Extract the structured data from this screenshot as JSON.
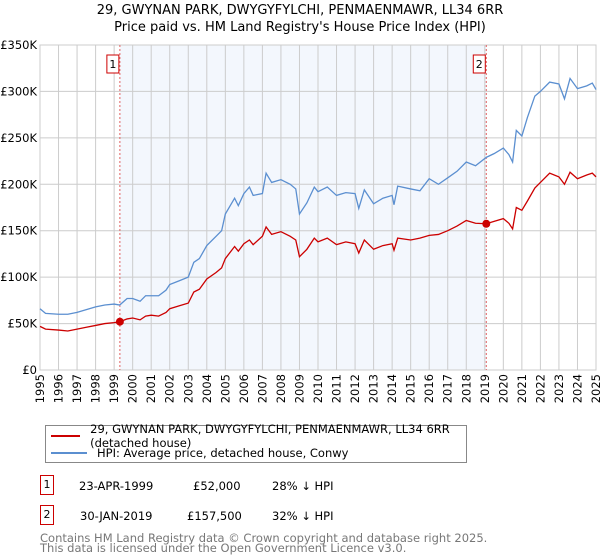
{
  "chart_data": {
    "type": "line",
    "title": "29, GWYNAN PARK, DWYGYFYLCHI, PENMAENMAWR, LL34 6RR",
    "subtitle": "Price paid vs. HM Land Registry's House Price Index (HPI)",
    "xlim": [
      1995,
      2025
    ],
    "ylim": [
      0,
      350000
    ],
    "grid": true,
    "x_ticks": [
      "1995",
      "1996",
      "1997",
      "1998",
      "1999",
      "2000",
      "2001",
      "2002",
      "2003",
      "2004",
      "2005",
      "2006",
      "2007",
      "2008",
      "2009",
      "2010",
      "2011",
      "2012",
      "2013",
      "2014",
      "2015",
      "2016",
      "2017",
      "2018",
      "2019",
      "2020",
      "2021",
      "2022",
      "2023",
      "2024",
      "2025"
    ],
    "y_ticks": [
      {
        "v": 0,
        "label": "£0"
      },
      {
        "v": 50000,
        "label": "£50K"
      },
      {
        "v": 100000,
        "label": "£100K"
      },
      {
        "v": 150000,
        "label": "£150K"
      },
      {
        "v": 200000,
        "label": "£200K"
      },
      {
        "v": 250000,
        "label": "£250K"
      },
      {
        "v": 300000,
        "label": "£300K"
      },
      {
        "v": 350000,
        "label": "£350K"
      }
    ],
    "shaded_range": [
      1999.31,
      2019.08
    ],
    "series": [
      {
        "name": "29, GWYNAN PARK, DWYGYFYLCHI, PENMAENMAWR, LL34 6RR (detached house)",
        "color": "#cc0000",
        "points": [
          [
            1995,
            47
          ],
          [
            1995.3,
            44
          ],
          [
            1996,
            43
          ],
          [
            1996.5,
            42
          ],
          [
            1997,
            44
          ],
          [
            1997.5,
            46
          ],
          [
            1998,
            48
          ],
          [
            1998.5,
            50
          ],
          [
            1999,
            51
          ],
          [
            1999.31,
            52
          ],
          [
            1999.7,
            55
          ],
          [
            2000,
            56
          ],
          [
            2000.4,
            54
          ],
          [
            2000.7,
            58
          ],
          [
            2001,
            59
          ],
          [
            2001.4,
            58
          ],
          [
            2001.8,
            62
          ],
          [
            2002,
            66
          ],
          [
            2002.5,
            69
          ],
          [
            2003,
            72
          ],
          [
            2003.3,
            84
          ],
          [
            2003.6,
            87
          ],
          [
            2004,
            98
          ],
          [
            2004.5,
            105
          ],
          [
            2004.8,
            110
          ],
          [
            2005,
            120
          ],
          [
            2005.5,
            133
          ],
          [
            2005.7,
            128
          ],
          [
            2006,
            136
          ],
          [
            2006.3,
            140
          ],
          [
            2006.5,
            135
          ],
          [
            2007,
            144
          ],
          [
            2007.2,
            154
          ],
          [
            2007.5,
            146
          ],
          [
            2008,
            149
          ],
          [
            2008.5,
            144
          ],
          [
            2008.8,
            140
          ],
          [
            2009,
            122
          ],
          [
            2009.4,
            130
          ],
          [
            2009.8,
            142
          ],
          [
            2010,
            138
          ],
          [
            2010.5,
            142
          ],
          [
            2011,
            135
          ],
          [
            2011.5,
            138
          ],
          [
            2012,
            136
          ],
          [
            2012.2,
            126
          ],
          [
            2012.5,
            140
          ],
          [
            2013,
            130
          ],
          [
            2013.5,
            134
          ],
          [
            2014,
            136
          ],
          [
            2014.1,
            129
          ],
          [
            2014.3,
            142
          ],
          [
            2015,
            140
          ],
          [
            2015.5,
            142
          ],
          [
            2016,
            145
          ],
          [
            2016.5,
            146
          ],
          [
            2017,
            150
          ],
          [
            2017.5,
            155
          ],
          [
            2018,
            161
          ],
          [
            2018.5,
            158
          ],
          [
            2019.08,
            157.5
          ],
          [
            2019.5,
            160
          ],
          [
            2020,
            163
          ],
          [
            2020.3,
            158
          ],
          [
            2020.5,
            152
          ],
          [
            2020.7,
            175
          ],
          [
            2021,
            172
          ],
          [
            2021.3,
            182
          ],
          [
            2021.7,
            196
          ],
          [
            2022,
            202
          ],
          [
            2022.5,
            212
          ],
          [
            2023,
            208
          ],
          [
            2023.3,
            200
          ],
          [
            2023.6,
            213
          ],
          [
            2024,
            206
          ],
          [
            2024.5,
            210
          ],
          [
            2024.8,
            212
          ],
          [
            2025,
            208
          ]
        ]
      },
      {
        "name": "HPI: Average price, detached house, Conwy",
        "color": "#5b8fd0",
        "points": [
          [
            1995,
            66
          ],
          [
            1995.3,
            61
          ],
          [
            1996,
            60
          ],
          [
            1996.5,
            60
          ],
          [
            1997,
            62
          ],
          [
            1997.5,
            65
          ],
          [
            1998,
            68
          ],
          [
            1998.5,
            70
          ],
          [
            1999,
            71
          ],
          [
            1999.3,
            70
          ],
          [
            1999.7,
            77
          ],
          [
            2000,
            77
          ],
          [
            2000.4,
            74
          ],
          [
            2000.7,
            80
          ],
          [
            2001,
            80
          ],
          [
            2001.4,
            80
          ],
          [
            2001.8,
            86
          ],
          [
            2002,
            92
          ],
          [
            2002.5,
            96
          ],
          [
            2003,
            100
          ],
          [
            2003.3,
            116
          ],
          [
            2003.6,
            120
          ],
          [
            2004,
            134
          ],
          [
            2004.5,
            144
          ],
          [
            2004.8,
            150
          ],
          [
            2005,
            168
          ],
          [
            2005.5,
            185
          ],
          [
            2005.7,
            177
          ],
          [
            2006,
            190
          ],
          [
            2006.3,
            197
          ],
          [
            2006.5,
            188
          ],
          [
            2007,
            190
          ],
          [
            2007.2,
            212
          ],
          [
            2007.5,
            202
          ],
          [
            2008,
            205
          ],
          [
            2008.5,
            200
          ],
          [
            2008.8,
            195
          ],
          [
            2009,
            168
          ],
          [
            2009.4,
            180
          ],
          [
            2009.8,
            197
          ],
          [
            2010,
            192
          ],
          [
            2010.5,
            197
          ],
          [
            2011,
            188
          ],
          [
            2011.5,
            191
          ],
          [
            2012,
            190
          ],
          [
            2012.2,
            174
          ],
          [
            2012.5,
            194
          ],
          [
            2013,
            179
          ],
          [
            2013.5,
            185
          ],
          [
            2014,
            188
          ],
          [
            2014.1,
            178
          ],
          [
            2014.3,
            198
          ],
          [
            2015,
            195
          ],
          [
            2015.5,
            193
          ],
          [
            2016,
            206
          ],
          [
            2016.5,
            200
          ],
          [
            2017,
            207
          ],
          [
            2017.5,
            214
          ],
          [
            2018,
            224
          ],
          [
            2018.5,
            220
          ],
          [
            2019.08,
            229
          ],
          [
            2019.5,
            233
          ],
          [
            2020,
            239
          ],
          [
            2020.3,
            232
          ],
          [
            2020.5,
            224
          ],
          [
            2020.7,
            258
          ],
          [
            2021,
            252
          ],
          [
            2021.3,
            272
          ],
          [
            2021.7,
            295
          ],
          [
            2022,
            300
          ],
          [
            2022.5,
            310
          ],
          [
            2023,
            308
          ],
          [
            2023.3,
            292
          ],
          [
            2023.6,
            314
          ],
          [
            2024,
            303
          ],
          [
            2024.5,
            306
          ],
          [
            2024.8,
            309
          ],
          [
            2025,
            302
          ]
        ]
      }
    ],
    "sales": [
      {
        "label": "1",
        "x": 1999.31,
        "value": 52000,
        "date": "23-APR-1999",
        "price": "£52,000",
        "hpi": "28% ↓ HPI"
      },
      {
        "label": "2",
        "x": 2019.08,
        "value": 157500,
        "date": "30-JAN-2019",
        "price": "£157,500",
        "hpi": "32% ↓ HPI"
      }
    ]
  },
  "legend": {
    "red": "29, GWYNAN PARK, DWYGYFYLCHI, PENMAENMAWR, LL34 6RR (detached house)",
    "blue": "HPI: Average price, detached house, Conwy"
  },
  "footer": {
    "line1": "Contains HM Land Registry data © Crown copyright and database right 2025.",
    "line2": "This data is licensed under the Open Government Licence v3.0."
  }
}
